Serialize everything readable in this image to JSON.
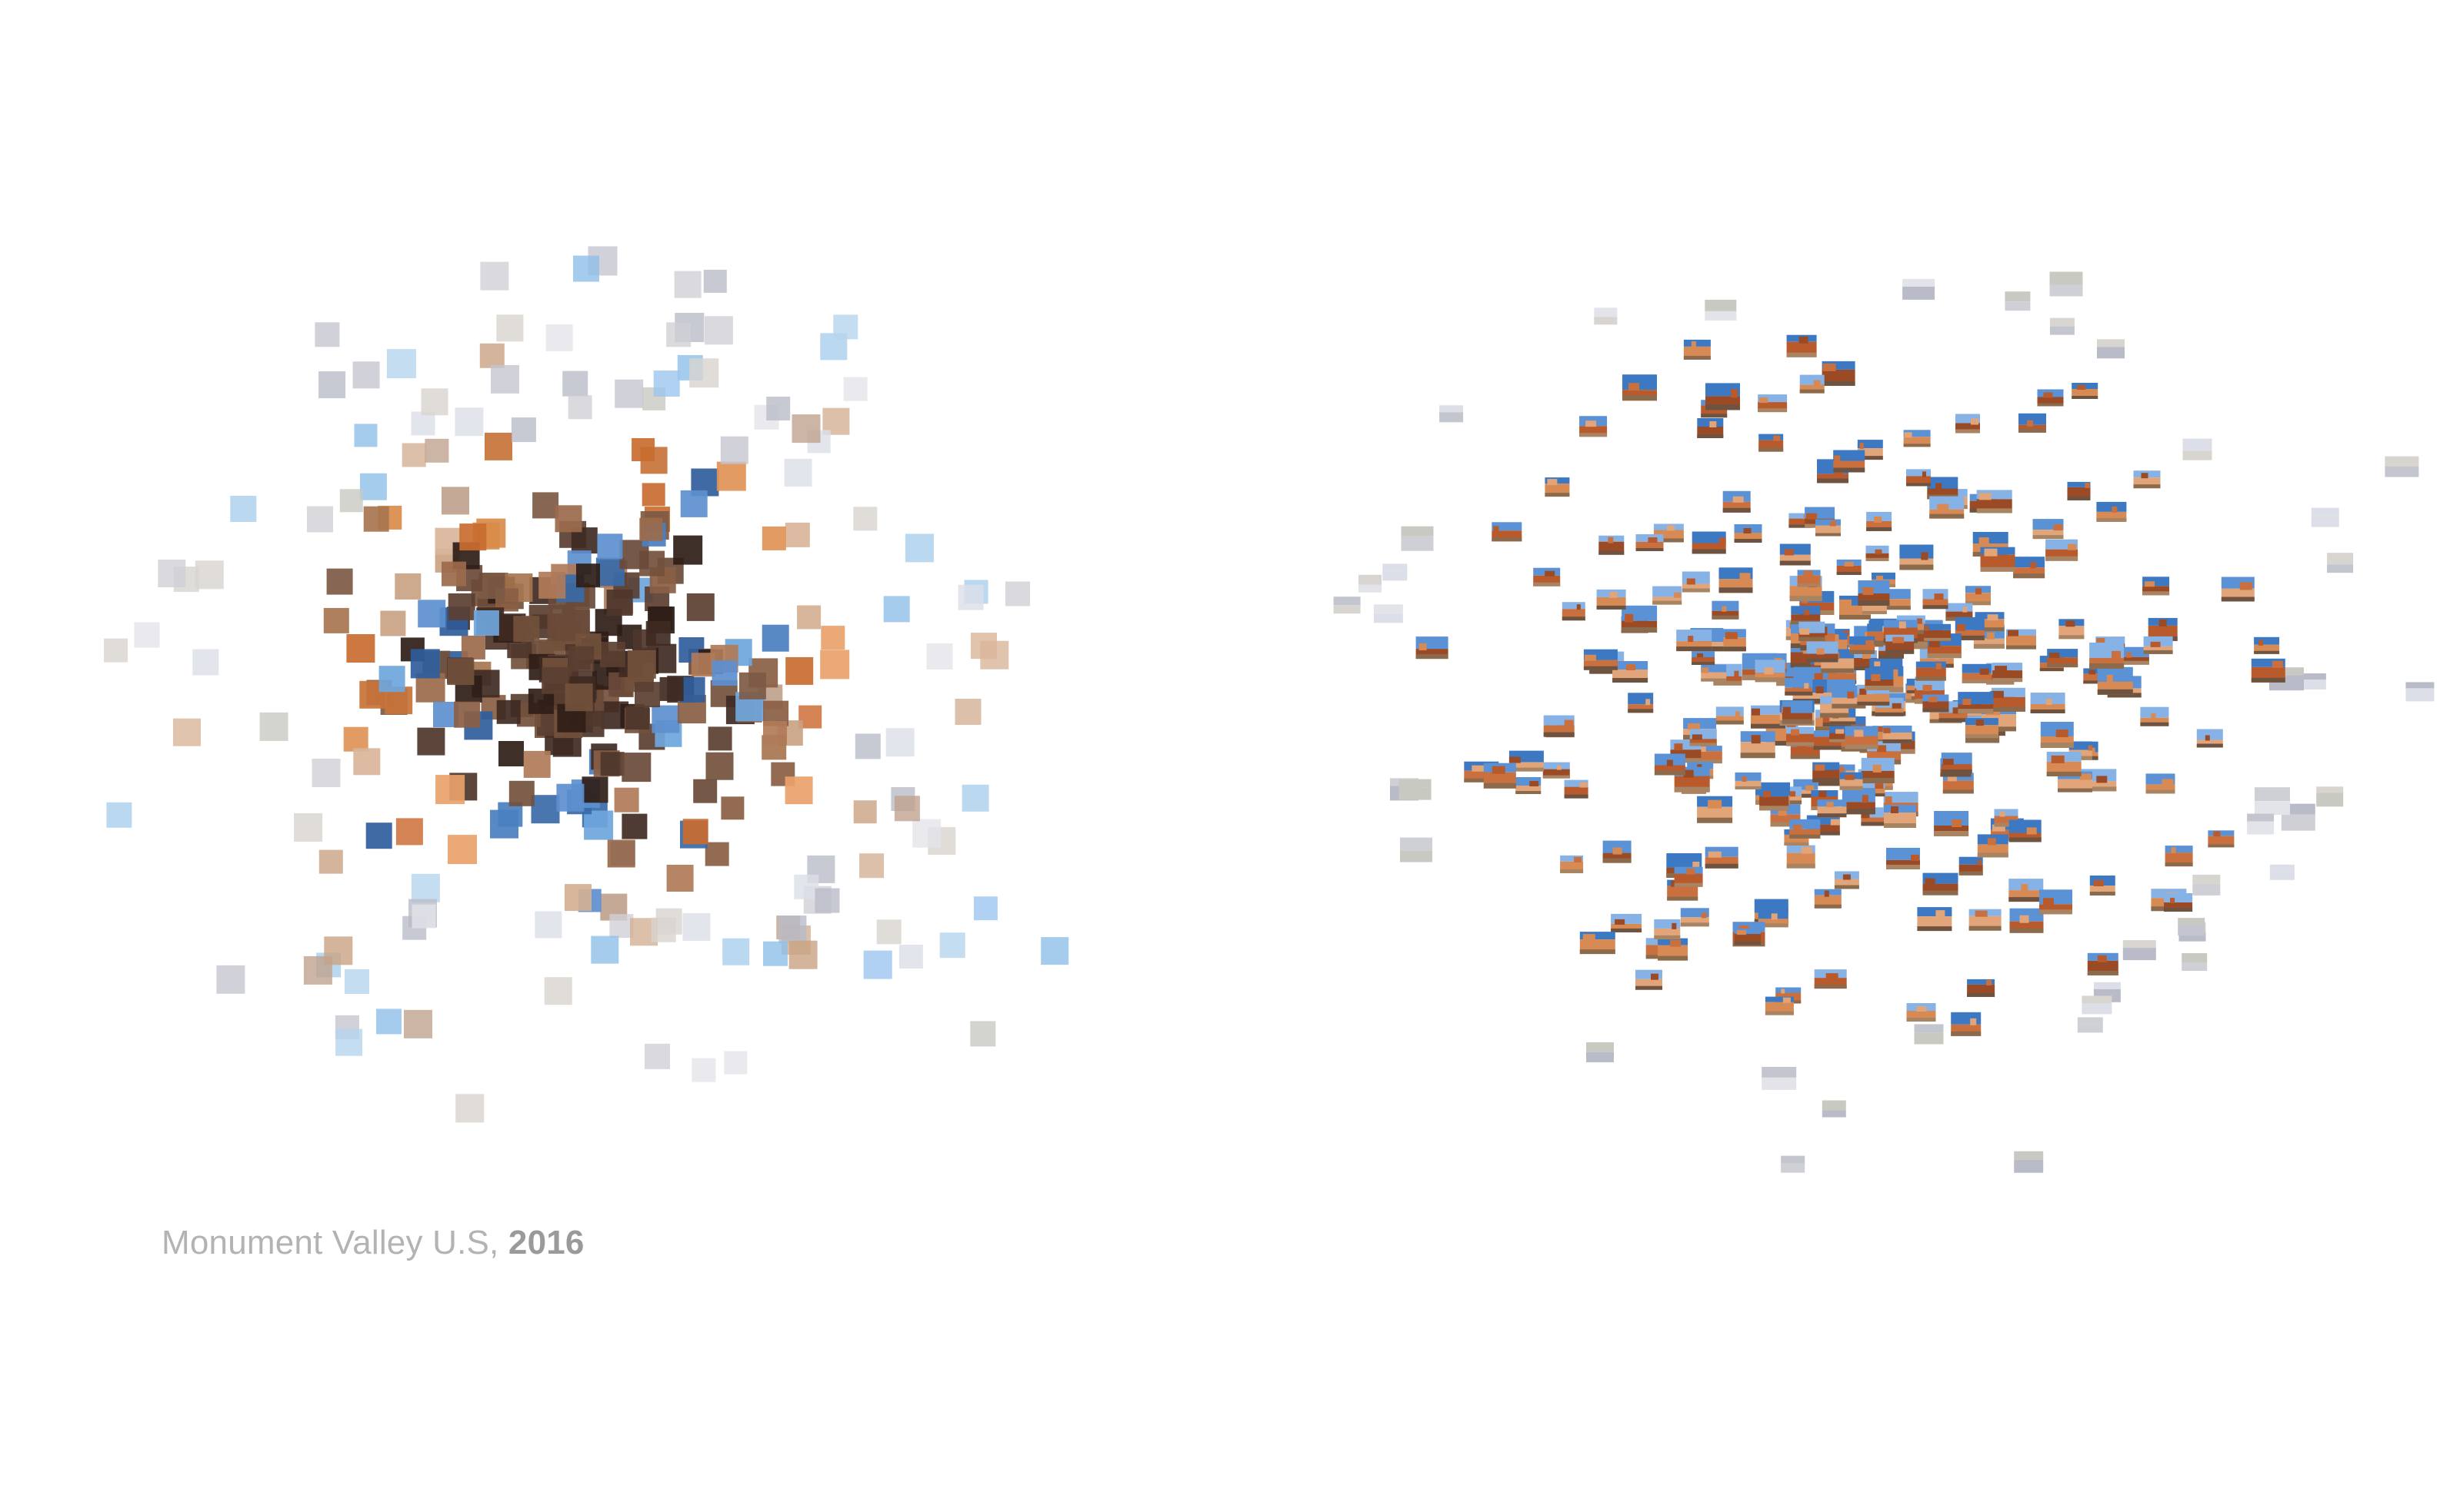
{
  "caption": {
    "place": "Monument Valley U.S,",
    "year": "2016"
  },
  "palette": {
    "dark_browns": [
      "#3f2a22",
      "#4e362b",
      "#5a3f31",
      "#6a4a38",
      "#2f1d17",
      "#72513c"
    ],
    "mid_browns": [
      "#8a5e44",
      "#9b6a4b",
      "#a7754f",
      "#7d5a45",
      "#b07b58"
    ],
    "oranges": [
      "#c8733a",
      "#d98b4a",
      "#e09256",
      "#c96c30",
      "#e8a26a",
      "#d07a45"
    ],
    "tans": [
      "#c9a283",
      "#d4b094",
      "#bfa38d",
      "#d9b59a"
    ],
    "blues": [
      "#3a6aa8",
      "#2f5d9c",
      "#4a7fc0",
      "#5d8fcf",
      "#6fa6dc"
    ],
    "light_blues": [
      "#9cc6ee",
      "#a9cfee",
      "#b7d4ec",
      "#8fbfe8"
    ],
    "greys": [
      "#c4c6cf",
      "#b9bcc8",
      "#cfd0d6",
      "#d8d4cf",
      "#c8c9c1",
      "#dcdfe8",
      "#e3e4ea"
    ],
    "photo_sky": [
      "#3d78c2",
      "#5b92d6",
      "#86b2e6"
    ],
    "photo_rock": [
      "#b85a2c",
      "#c9703e",
      "#d88a55",
      "#9a4a24",
      "#e2a57a"
    ],
    "photo_ground": [
      "#8c6a4c",
      "#a98463",
      "#6e5440"
    ]
  }
}
